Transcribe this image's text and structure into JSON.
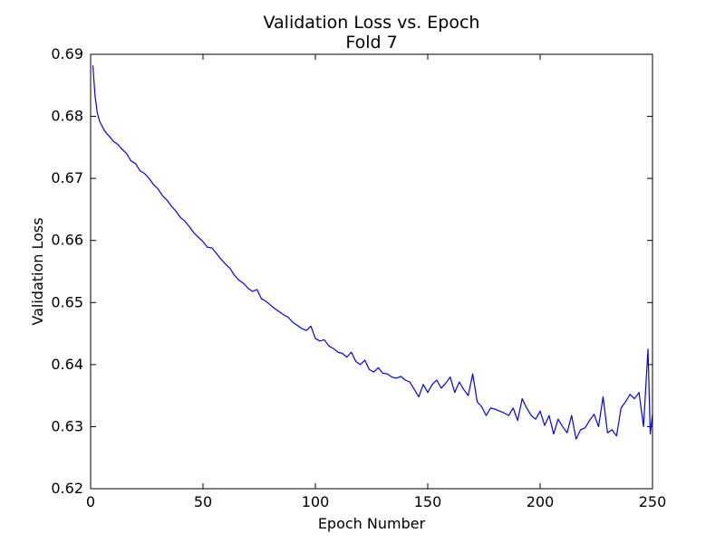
{
  "chart_data": {
    "type": "line",
    "title": "Validation Loss vs. Epoch",
    "subtitle": "Fold 7",
    "xlabel": "Epoch Number",
    "ylabel": "Validation Loss",
    "xlim": [
      0,
      250
    ],
    "ylim": [
      0.62,
      0.69
    ],
    "xticks": [
      "0",
      "50",
      "100",
      "150",
      "200",
      "250"
    ],
    "yticks": [
      "0.62",
      "0.63",
      "0.64",
      "0.65",
      "0.66",
      "0.67",
      "0.68",
      "0.69"
    ],
    "grid": false,
    "line_color": "#0000ff",
    "series": [
      {
        "x": [
          1,
          2,
          3,
          4,
          5,
          6,
          7,
          8,
          9,
          10,
          12,
          14,
          16,
          18,
          20,
          22,
          24,
          26,
          28,
          30,
          32,
          34,
          36,
          38,
          40,
          42,
          44,
          46,
          48,
          50,
          52,
          54,
          56,
          58,
          60,
          62,
          64,
          66,
          68,
          70,
          72,
          74,
          76,
          78,
          80,
          82,
          84,
          86,
          88,
          90,
          92,
          94,
          96,
          98,
          100,
          102,
          104,
          106,
          108,
          110,
          112,
          114,
          116,
          118,
          120,
          122,
          124,
          126,
          128,
          130,
          132,
          134,
          136,
          138,
          140,
          142,
          144,
          146,
          148,
          150,
          152,
          154,
          156,
          158,
          160,
          162,
          164,
          166,
          168,
          170,
          172,
          174,
          176,
          178,
          180,
          182,
          184,
          186,
          188,
          190,
          192,
          194,
          196,
          198,
          200,
          202,
          204,
          206,
          208,
          210,
          212,
          214,
          216,
          218,
          220,
          222,
          224,
          226,
          228,
          230,
          232,
          234,
          236,
          238,
          240,
          242,
          244,
          246,
          248,
          249,
          250
        ],
        "y": [
          0.6882,
          0.6832,
          0.6805,
          0.6792,
          0.6785,
          0.6778,
          0.6773,
          0.6769,
          0.6765,
          0.676,
          0.6755,
          0.6747,
          0.674,
          0.6728,
          0.6724,
          0.6712,
          0.6708,
          0.67,
          0.669,
          0.6683,
          0.6672,
          0.6665,
          0.6655,
          0.6647,
          0.6637,
          0.6631,
          0.6622,
          0.6612,
          0.6605,
          0.6598,
          0.6589,
          0.6588,
          0.6579,
          0.657,
          0.6562,
          0.6555,
          0.6544,
          0.6536,
          0.6531,
          0.6523,
          0.6518,
          0.6521,
          0.6506,
          0.6502,
          0.6496,
          0.649,
          0.6485,
          0.648,
          0.6476,
          0.6468,
          0.6463,
          0.6458,
          0.6455,
          0.6462,
          0.6442,
          0.6438,
          0.644,
          0.643,
          0.6426,
          0.642,
          0.6418,
          0.6412,
          0.642,
          0.6405,
          0.64,
          0.6407,
          0.6392,
          0.6388,
          0.6395,
          0.6386,
          0.6385,
          0.638,
          0.6378,
          0.6381,
          0.6375,
          0.6372,
          0.636,
          0.6348,
          0.6368,
          0.6355,
          0.6368,
          0.6375,
          0.6362,
          0.637,
          0.638,
          0.6355,
          0.6372,
          0.636,
          0.635,
          0.6385,
          0.634,
          0.6332,
          0.6318,
          0.633,
          0.6328,
          0.6325,
          0.6322,
          0.6318,
          0.633,
          0.631,
          0.6345,
          0.633,
          0.6318,
          0.6312,
          0.6325,
          0.6302,
          0.6318,
          0.6288,
          0.6312,
          0.63,
          0.629,
          0.6318,
          0.628,
          0.6295,
          0.6298,
          0.631,
          0.632,
          0.63,
          0.6348,
          0.629,
          0.6295,
          0.6285,
          0.633,
          0.634,
          0.6352,
          0.6345,
          0.6355,
          0.63,
          0.6425,
          0.6288,
          0.632
        ]
      }
    ]
  }
}
